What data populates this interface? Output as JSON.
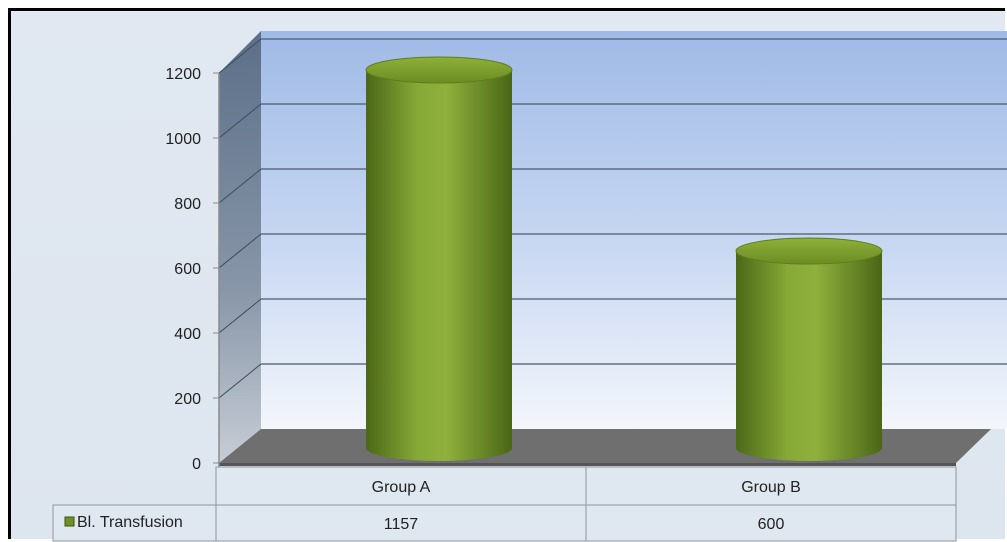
{
  "chart_data": {
    "type": "bar",
    "style": "3d-cylinder",
    "categories": [
      "Group A",
      "Group B"
    ],
    "series": [
      {
        "name": "Bl. Transfusion",
        "values": [
          1157,
          600
        ],
        "color": "#7a9a2e"
      }
    ],
    "yticks": [
      0,
      200,
      400,
      600,
      800,
      1000,
      1200
    ],
    "ylim": [
      0,
      1200
    ],
    "grid": true,
    "legend": "data-table",
    "data_table": {
      "row_label": "Bl. Transfusion",
      "values": [
        "1157",
        "600"
      ]
    }
  },
  "colors": {
    "back_wall_top": "#9eb9e6",
    "back_wall_bottom": "#eef3fb",
    "side_wall": "#56687f",
    "floor": "#6e6e6e",
    "bar_dark": "#4e6a1a",
    "bar_light": "#9cbb44",
    "bar_top": "#6f9025"
  }
}
